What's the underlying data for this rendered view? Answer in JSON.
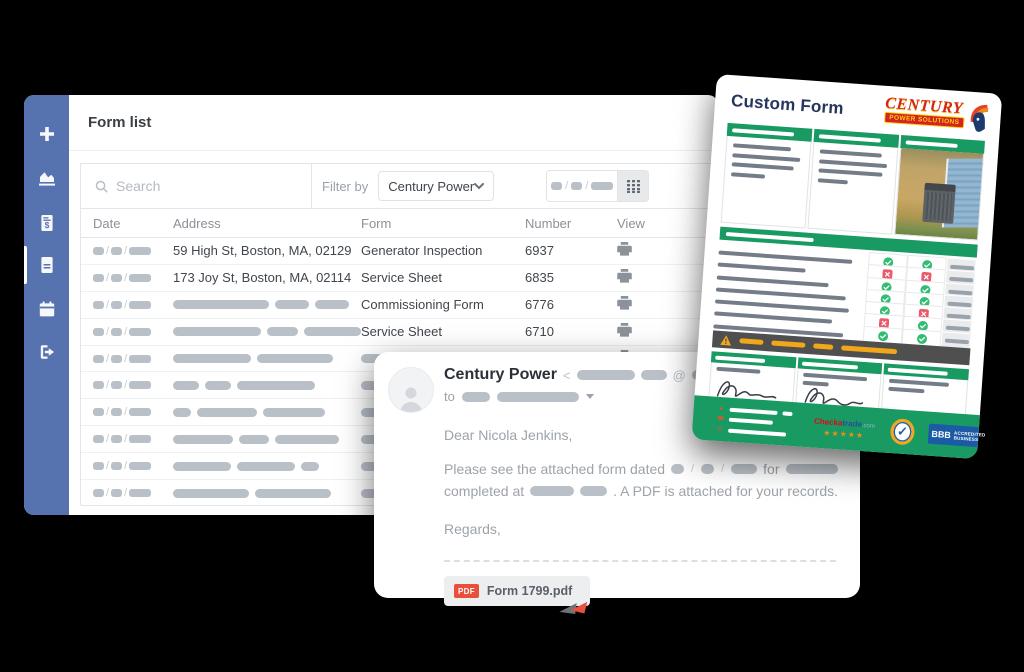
{
  "window": {
    "title": "Form list",
    "sidebar_items": [
      {
        "name": "add",
        "active": false
      },
      {
        "name": "reports",
        "active": false
      },
      {
        "name": "invoices",
        "active": false
      },
      {
        "name": "forms",
        "active": true
      },
      {
        "name": "schedule",
        "active": false
      },
      {
        "name": "logout",
        "active": false
      }
    ]
  },
  "filters": {
    "search_placeholder": "Search",
    "filter_by_label": "Filter by",
    "selected_client": "Century Power"
  },
  "table": {
    "columns": [
      "Date",
      "Address",
      "Form",
      "Number",
      "View"
    ],
    "rows": [
      {
        "address": "59 High St, Boston, MA, 02129",
        "form": "Generator Inspection",
        "number": "6937"
      },
      {
        "address": "173 Joy St, Boston, MA, 02114",
        "form": "Service Sheet",
        "number": "6835"
      },
      {
        "address_bars": [
          96,
          34,
          34
        ],
        "form": "Commissioning Form",
        "number": "6776"
      },
      {
        "address_bars": [
          96,
          34,
          62
        ],
        "form": "Service Sheet",
        "number": "6710"
      },
      {
        "address_bars": [
          78,
          76
        ],
        "form_bar": 56
      },
      {
        "address_bars": [
          26,
          26,
          78
        ],
        "form_bar": 48
      },
      {
        "address_bars": [
          18,
          60,
          62
        ],
        "form_bar": 52
      },
      {
        "address_bars": [
          60,
          30,
          64
        ],
        "form_bar": 44
      },
      {
        "address_bars": [
          58,
          58,
          18
        ],
        "form_bar": 50
      },
      {
        "address_bars": [
          76,
          76
        ],
        "form_bar": 54
      }
    ]
  },
  "email": {
    "sender": "Century Power",
    "to_label": "to",
    "greeting": "Dear Nicola Jenkins,",
    "body1_pre": "Please see the attached form dated",
    "body1_mid": "for",
    "body2_pre": "completed at",
    "body2_post": ". A PDF is attached for your records.",
    "signoff": "Regards,",
    "attachment": {
      "badge": "PDF",
      "filename": "Form 1799.pdf"
    }
  },
  "form_card": {
    "title": "Custom Form",
    "logo": {
      "top": "CENTURY",
      "bottom": "POWER SOLUTIONS"
    },
    "checklist": [
      {
        "bar": 134,
        "statuses": [
          "check",
          "check"
        ]
      },
      {
        "bar": 88,
        "statuses": [
          "x",
          "x"
        ]
      },
      {
        "bar": 112,
        "statuses": [
          "check",
          "check"
        ]
      },
      {
        "bar": 130,
        "statuses": [
          "check",
          "check"
        ]
      },
      {
        "bar": 134,
        "statuses": [
          "check",
          "x"
        ]
      },
      {
        "bar": 118,
        "statuses": [
          "x",
          "check"
        ]
      },
      {
        "bar": 130,
        "statuses": [
          "check",
          "check"
        ]
      }
    ],
    "warning_dashes": [
      24,
      34,
      20,
      56
    ],
    "footer": {
      "checkatrade": {
        "part1": "Checka",
        "part2": "trade",
        "part3": ".com",
        "stars": "★★★★★"
      },
      "accredited_line1": "ACCREDITED",
      "accredited_line2": "BUSINESS",
      "bbb": "BBB"
    }
  },
  "colors": {
    "sidebar_blue": "#5673b0",
    "brand_green": "#189a62",
    "warning_gray": "#4f4f4f",
    "warning_yellow": "#f2a71b",
    "pdf_red": "#e8503c",
    "logo_red": "#d22328",
    "logo_yellow": "#ffd200",
    "redaction_gray": "#b9c0c7",
    "form_bar_gray": "#747c87"
  }
}
